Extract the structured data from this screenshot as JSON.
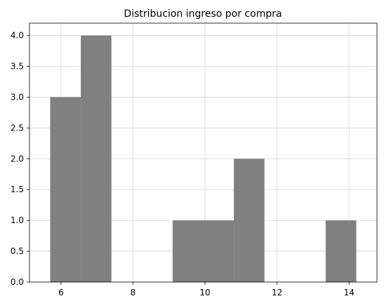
{
  "chart_data": {
    "type": "bar",
    "subtype": "histogram",
    "title": "Distribucion ingreso por compra",
    "xlabel": "",
    "ylabel": "",
    "bins": [
      {
        "x0": 5.7,
        "x1": 6.55,
        "count": 3
      },
      {
        "x0": 6.55,
        "x1": 7.4,
        "count": 4
      },
      {
        "x0": 7.4,
        "x1": 8.25,
        "count": 0
      },
      {
        "x0": 8.25,
        "x1": 9.1,
        "count": 0
      },
      {
        "x0": 9.1,
        "x1": 9.95,
        "count": 1
      },
      {
        "x0": 9.95,
        "x1": 10.8,
        "count": 1
      },
      {
        "x0": 10.8,
        "x1": 11.65,
        "count": 2
      },
      {
        "x0": 11.65,
        "x1": 12.5,
        "count": 0
      },
      {
        "x0": 12.5,
        "x1": 13.35,
        "count": 0
      },
      {
        "x0": 13.35,
        "x1": 14.2,
        "count": 1
      }
    ],
    "xlim": [
      5.125,
      14.775
    ],
    "ylim": [
      0,
      4.2
    ],
    "x_ticks": [
      6,
      8,
      10,
      12,
      14
    ],
    "y_ticks": [
      0.0,
      0.5,
      1.0,
      1.5,
      2.0,
      2.5,
      3.0,
      3.5,
      4.0
    ],
    "x_tick_labels": [
      "6",
      "8",
      "10",
      "12",
      "14"
    ],
    "y_tick_labels": [
      "0.0",
      "0.5",
      "1.0",
      "1.5",
      "2.0",
      "2.5",
      "3.0",
      "3.5",
      "4.0"
    ],
    "grid": true,
    "bar_color": "#808080",
    "grid_color": "#d3d3d3",
    "axis_color": "#000000"
  }
}
